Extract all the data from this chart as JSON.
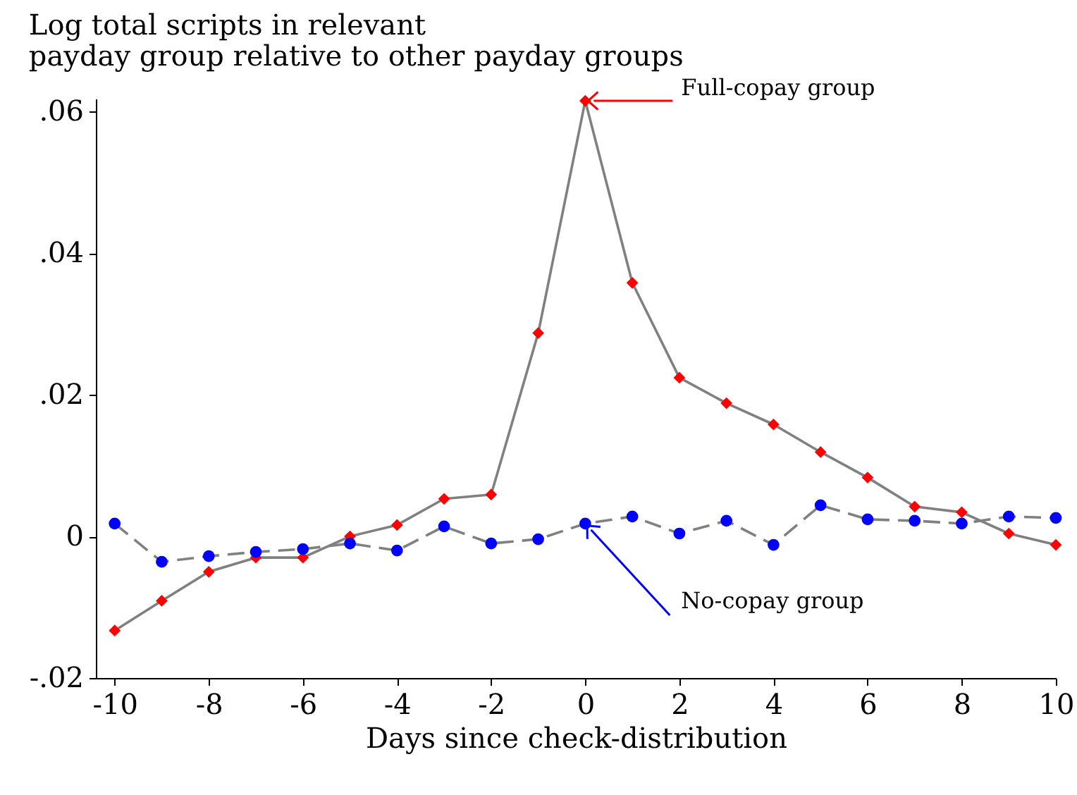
{
  "chart_data": {
    "type": "line",
    "ylabel": "Log total scripts in relevant\npayday group relative to other payday groups",
    "xlabel": "Days since check-distribution",
    "x": [
      -10,
      -9,
      -8,
      -7,
      -6,
      -5,
      -4,
      -3,
      -2,
      -1,
      0,
      1,
      2,
      3,
      4,
      5,
      6,
      7,
      8,
      9,
      10
    ],
    "series": [
      {
        "color": "#ff0000",
        "marker": "diamond",
        "line_style": "solid",
        "values": [
          -0.0133,
          -0.0091,
          -0.005,
          -0.003,
          -0.003,
          0.0,
          0.0016,
          0.0053,
          0.0059,
          0.0287,
          0.0615,
          0.0358,
          0.0224,
          0.0188,
          0.0158,
          0.0119,
          0.0083,
          0.0042,
          0.0034,
          0.0004,
          -0.0012
        ]
      },
      {
        "color": "#0000ff",
        "marker": "circle",
        "line_style": "dashed",
        "values": [
          0.0018,
          -0.0036,
          -0.0028,
          -0.0022,
          -0.0018,
          -0.001,
          -0.002,
          0.0014,
          -0.001,
          -0.0004,
          0.0018,
          0.0028,
          0.0004,
          0.0022,
          -0.0012,
          0.0044,
          0.0024,
          0.0022,
          0.0018,
          0.0028,
          0.0026
        ]
      }
    ],
    "annotations": [
      {
        "text": "Full-copay group",
        "x": 0,
        "y": 0.0615
      },
      {
        "text": "No-copay group",
        "x": 0,
        "y": 0.0018
      }
    ],
    "xlim": [
      -10.4,
      10
    ],
    "xticks": [
      -10,
      -8,
      -6,
      -4,
      -2,
      0,
      2,
      4,
      6,
      8,
      10
    ],
    "ylim": [
      -0.02,
      0.0618
    ],
    "yticks": [
      {
        "value": -0.02,
        "label": "-.02"
      },
      0,
      {
        "value": 0.02,
        "label": ".02"
      },
      {
        "value": 0.04,
        "label": ".04"
      },
      {
        "value": 0.06,
        "label": ".06"
      }
    ],
    "grid": false
  }
}
